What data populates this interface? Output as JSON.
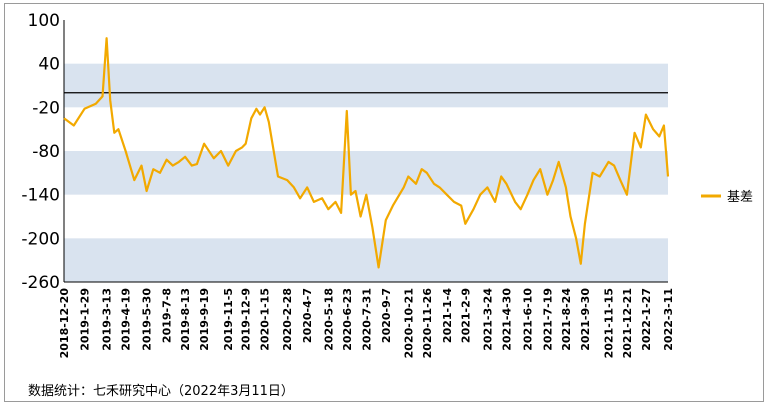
{
  "chart_data": {
    "type": "line",
    "title": "",
    "xlabel": "",
    "ylabel": "",
    "ylim": [
      -260,
      100
    ],
    "yticks": [
      100,
      40,
      -20,
      -80,
      -140,
      -200,
      -260
    ],
    "shaded_bands": [
      [
        -20,
        40
      ],
      [
        -140,
        -80
      ],
      [
        -260,
        -200
      ]
    ],
    "reference_line": 0,
    "legend_position": "right",
    "x_tick_labels": [
      "2018-12-20",
      "2019-1-29",
      "2019-3-13",
      "2019-4-19",
      "2019-5-30",
      "2019-7-8",
      "2019-8-13",
      "2019-9-19",
      "2019-11-5",
      "2019-12-9",
      "2020-1-15",
      "2020-2-28",
      "2020-4-7",
      "2020-5-18",
      "2020-6-23",
      "2020-7-31",
      "2020-9-7",
      "2020-10-21",
      "2020-11-26",
      "2021-1-4",
      "2021-2-9",
      "2021-3-24",
      "2021-4-30",
      "2021-6-10",
      "2021-7-19",
      "2021-8-24",
      "2021-9-30",
      "2021-11-15",
      "2021-12-21",
      "2022-1-27",
      "2022-3-11"
    ],
    "series": [
      {
        "name": "基差",
        "color": "#F2A900",
        "x": [
          "2018-12-20",
          "2019-1-8",
          "2019-1-29",
          "2019-2-20",
          "2019-3-5",
          "2019-3-13",
          "2019-3-20",
          "2019-3-28",
          "2019-4-5",
          "2019-4-19",
          "2019-5-6",
          "2019-5-20",
          "2019-5-30",
          "2019-6-12",
          "2019-6-25",
          "2019-7-8",
          "2019-7-20",
          "2019-8-1",
          "2019-8-13",
          "2019-8-26",
          "2019-9-5",
          "2019-9-19",
          "2019-10-8",
          "2019-10-22",
          "2019-11-5",
          "2019-11-20",
          "2019-12-2",
          "2019-12-9",
          "2019-12-20",
          "2019-12-30",
          "2020-1-6",
          "2020-1-15",
          "2020-1-23",
          "2020-2-10",
          "2020-2-28",
          "2020-3-12",
          "2020-3-24",
          "2020-4-7",
          "2020-4-20",
          "2020-5-6",
          "2020-5-18",
          "2020-6-1",
          "2020-6-12",
          "2020-6-23",
          "2020-7-1",
          "2020-7-10",
          "2020-7-20",
          "2020-7-31",
          "2020-8-12",
          "2020-8-24",
          "2020-9-7",
          "2020-9-21",
          "2020-10-12",
          "2020-10-21",
          "2020-11-5",
          "2020-11-16",
          "2020-11-26",
          "2020-12-10",
          "2020-12-21",
          "2021-1-4",
          "2021-1-18",
          "2021-2-1",
          "2021-2-9",
          "2021-2-25",
          "2021-3-10",
          "2021-3-24",
          "2021-4-8",
          "2021-4-20",
          "2021-4-30",
          "2021-5-17",
          "2021-5-28",
          "2021-6-10",
          "2021-6-22",
          "2021-7-5",
          "2021-7-19",
          "2021-7-30",
          "2021-8-10",
          "2021-8-24",
          "2021-9-2",
          "2021-9-13",
          "2021-9-22",
          "2021-9-30",
          "2021-10-15",
          "2021-10-29",
          "2021-11-15",
          "2021-11-26",
          "2021-12-8",
          "2021-12-21",
          "2022-1-5",
          "2022-1-17",
          "2022-1-27",
          "2022-2-10",
          "2022-2-22",
          "2022-3-3",
          "2022-3-11"
        ],
        "values": [
          -35,
          -45,
          -22,
          -15,
          -5,
          75,
          -10,
          -55,
          -50,
          -80,
          -120,
          -100,
          -135,
          -105,
          -110,
          -92,
          -100,
          -95,
          -88,
          -100,
          -98,
          -70,
          -90,
          -80,
          -100,
          -80,
          -75,
          -70,
          -35,
          -22,
          -30,
          -20,
          -40,
          -115,
          -120,
          -130,
          -145,
          -130,
          -150,
          -145,
          -160,
          -150,
          -165,
          -25,
          -140,
          -135,
          -170,
          -140,
          -185,
          -240,
          -175,
          -155,
          -130,
          -115,
          -125,
          -105,
          -110,
          -125,
          -130,
          -140,
          -150,
          -155,
          -180,
          -160,
          -140,
          -130,
          -150,
          -115,
          -125,
          -150,
          -160,
          -140,
          -120,
          -105,
          -140,
          -120,
          -95,
          -130,
          -170,
          -200,
          -235,
          -180,
          -110,
          -115,
          -95,
          -100,
          -120,
          -140,
          -55,
          -75,
          -30,
          -50,
          -60,
          -45,
          -115
        ]
      }
    ]
  },
  "footer": {
    "source": "数据统计：七禾研究中心（2022年3月11日）"
  }
}
